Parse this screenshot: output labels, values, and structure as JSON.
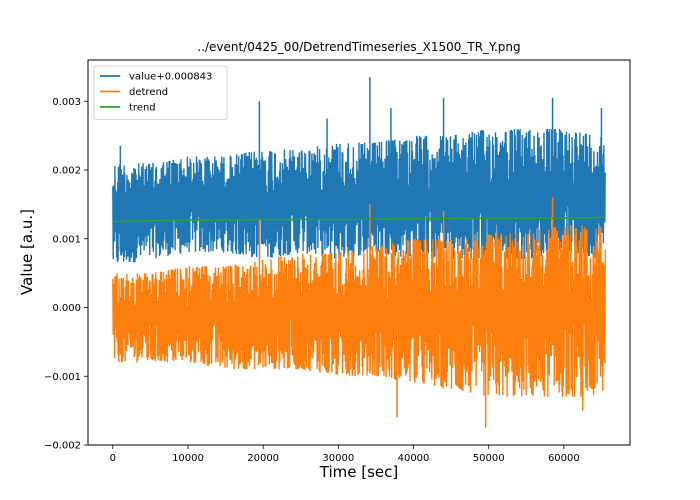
{
  "chart_data": {
    "type": "line",
    "title": "../event/0425_00/DetrendTimeseries_X1500_TR_Y.png",
    "xlabel": "Time [sec]",
    "ylabel": "Value [a.u.]",
    "xlim": [
      -3300,
      68800
    ],
    "ylim": [
      -0.002,
      0.0036
    ],
    "xticks": [
      0,
      10000,
      20000,
      30000,
      40000,
      50000,
      60000
    ],
    "xtick_labels": [
      "0",
      "10000",
      "20000",
      "30000",
      "40000",
      "50000",
      "60000"
    ],
    "yticks": [
      -0.002,
      -0.001,
      0.0,
      0.001,
      0.002,
      0.003
    ],
    "ytick_labels": [
      "−0.002",
      "−0.001",
      "0.000",
      "0.001",
      "0.002",
      "0.003"
    ],
    "legend_position": "top-left",
    "grid": false,
    "series": [
      {
        "name": "value+0.000843",
        "color": "#1f77b4",
        "x": [
          0,
          5000,
          10000,
          15000,
          20000,
          25000,
          30000,
          35000,
          40000,
          45000,
          50000,
          55000,
          60000,
          65500
        ],
        "y_low": [
          0.0006,
          0.0007,
          0.0008,
          0.0008,
          0.0007,
          0.0008,
          0.0007,
          0.0008,
          0.0007,
          0.0007,
          0.0007,
          0.0007,
          0.0008,
          0.0007
        ],
        "y_high": [
          0.0021,
          0.0021,
          0.0022,
          0.0022,
          0.0023,
          0.0023,
          0.0024,
          0.0024,
          0.0025,
          0.0025,
          0.0026,
          0.0026,
          0.0026,
          0.0025
        ],
        "y_mid": [
          0.00125,
          0.00128,
          0.0013,
          0.0013,
          0.00131,
          0.00132,
          0.00132,
          0.00133,
          0.00134,
          0.00134,
          0.00135,
          0.00135,
          0.00135,
          0.00134
        ],
        "spikes": [
          [
            1000,
            0.00235
          ],
          [
            19500,
            0.003
          ],
          [
            28500,
            0.00275
          ],
          [
            34200,
            0.00335
          ],
          [
            37000,
            0.0029
          ],
          [
            44000,
            0.00305
          ],
          [
            58500,
            0.00305
          ],
          [
            65000,
            0.0029
          ]
        ]
      },
      {
        "name": "detrend",
        "color": "#ff7f0e",
        "x": [
          0,
          5000,
          10000,
          15000,
          20000,
          25000,
          30000,
          35000,
          40000,
          45000,
          50000,
          55000,
          60000,
          65500
        ],
        "y_low": [
          -0.0008,
          -0.0008,
          -0.0008,
          -0.0009,
          -0.0009,
          -0.0009,
          -0.001,
          -0.001,
          -0.0011,
          -0.0012,
          -0.0013,
          -0.0013,
          -0.0013,
          -0.0013
        ],
        "y_high": [
          0.0005,
          0.0005,
          0.0006,
          0.0006,
          0.0007,
          0.0008,
          0.0008,
          0.0009,
          0.001,
          0.001,
          0.0011,
          0.0011,
          0.0012,
          0.0012
        ],
        "y_mid": [
          0.0,
          0.0,
          0.0,
          0.0,
          0.0,
          0.0,
          0.0,
          0.0,
          0.0,
          0.0,
          0.0,
          0.0,
          0.0,
          0.0
        ],
        "spikes": [
          [
            19500,
            0.0013
          ],
          [
            34200,
            0.0015
          ],
          [
            37800,
            -0.0016
          ],
          [
            44000,
            0.0014
          ],
          [
            49600,
            -0.00175
          ],
          [
            58500,
            0.0016
          ],
          [
            62500,
            -0.0015
          ]
        ]
      },
      {
        "name": "trend",
        "color": "#2ca02c",
        "x": [
          0,
          10000,
          20000,
          30000,
          40000,
          50000,
          60000,
          65500
        ],
        "y": [
          0.00125,
          0.00127,
          0.00128,
          0.00128,
          0.00129,
          0.0013,
          0.0013,
          0.00131
        ]
      }
    ]
  }
}
